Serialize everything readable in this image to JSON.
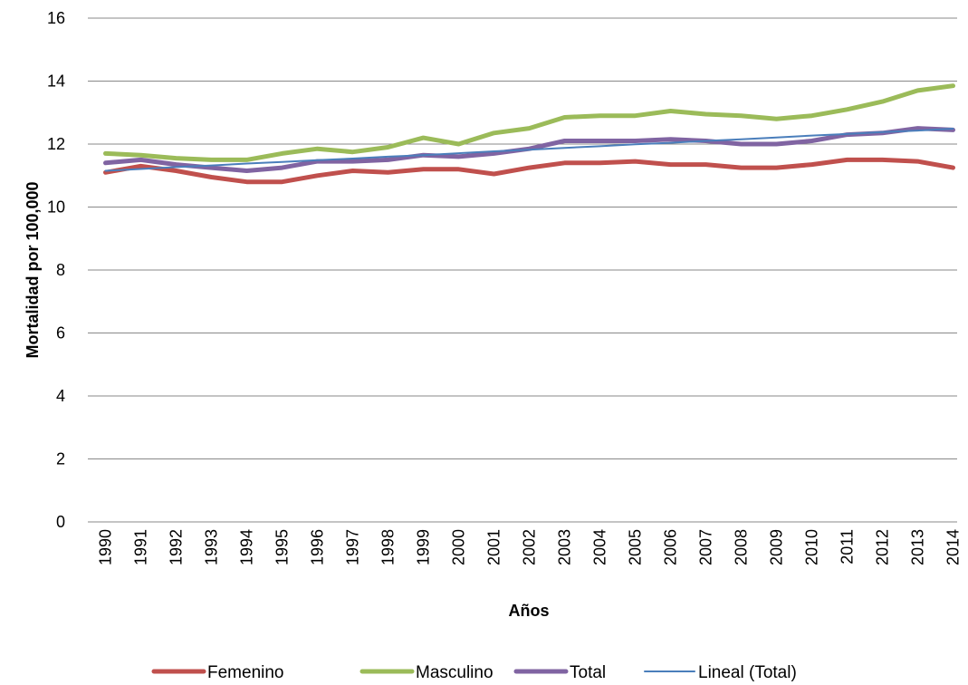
{
  "chart_data": {
    "type": "line",
    "title": "",
    "xlabel": "Años",
    "ylabel": "Mortalidad por 100,000",
    "ylim": [
      0,
      16
    ],
    "yticks": [
      "0",
      "2",
      "4",
      "6",
      "8",
      "10",
      "12",
      "14",
      "16"
    ],
    "grid": true,
    "legend_position": "bottom",
    "categories": [
      "1990",
      "1991",
      "1992",
      "1993",
      "1994",
      "1995",
      "1996",
      "1997",
      "1998",
      "1999",
      "2000",
      "2001",
      "2002",
      "2003",
      "2004",
      "2005",
      "2006",
      "2007",
      "2008",
      "2009",
      "2010",
      "2011",
      "2012",
      "2013",
      "2014"
    ],
    "series": [
      {
        "name": "Femenino",
        "color": "#c0504d",
        "width": 5,
        "values": [
          11.1,
          11.3,
          11.15,
          10.95,
          10.8,
          10.8,
          11.0,
          11.15,
          11.1,
          11.2,
          11.2,
          11.05,
          11.25,
          11.4,
          11.4,
          11.45,
          11.35,
          11.35,
          11.25,
          11.25,
          11.35,
          11.5,
          11.5,
          11.45,
          11.25
        ]
      },
      {
        "name": "Masculino",
        "color": "#9bbb59",
        "width": 5,
        "values": [
          11.7,
          11.65,
          11.55,
          11.5,
          11.5,
          11.7,
          11.85,
          11.75,
          11.9,
          12.2,
          12.0,
          12.35,
          12.5,
          12.85,
          12.9,
          12.9,
          13.05,
          12.95,
          12.9,
          12.8,
          12.9,
          13.1,
          13.35,
          13.7,
          13.85
        ]
      },
      {
        "name": "Total",
        "color": "#8064a2",
        "width": 5,
        "values": [
          11.4,
          11.5,
          11.35,
          11.25,
          11.15,
          11.25,
          11.45,
          11.45,
          11.5,
          11.65,
          11.6,
          11.7,
          11.85,
          12.1,
          12.1,
          12.1,
          12.15,
          12.1,
          12.0,
          12.0,
          12.1,
          12.3,
          12.35,
          12.5,
          12.45
        ]
      },
      {
        "name": "Lineal (Total)",
        "color": "#4a7ebb",
        "width": 2,
        "values": [
          11.15,
          11.21,
          11.27,
          11.32,
          11.38,
          11.43,
          11.49,
          11.54,
          11.6,
          11.65,
          11.71,
          11.77,
          11.82,
          11.88,
          11.93,
          11.99,
          12.04,
          12.1,
          12.15,
          12.21,
          12.27,
          12.32,
          12.38,
          12.43,
          12.49
        ]
      }
    ]
  }
}
